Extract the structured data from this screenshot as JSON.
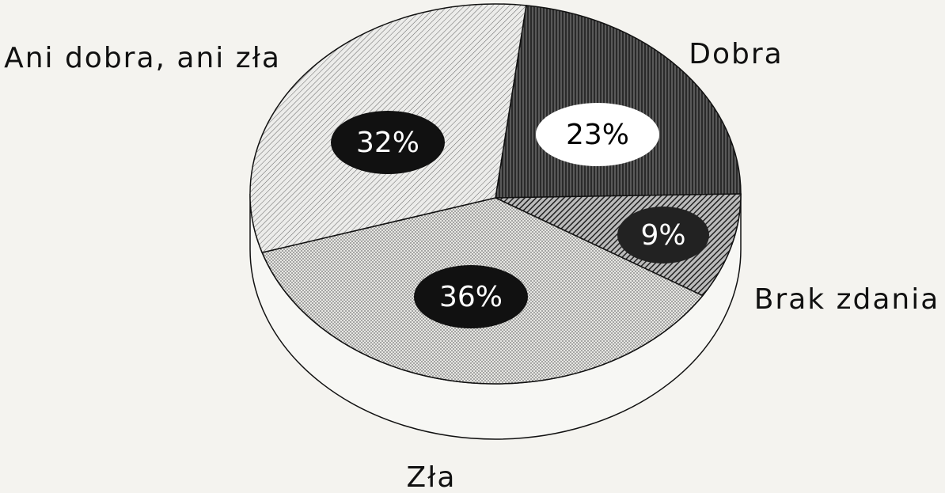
{
  "chart_data": {
    "type": "pie",
    "categories": [
      "Dobra",
      "Brak zdania",
      "Zła",
      "Ani dobra, ani zła"
    ],
    "values": [
      23,
      9,
      36,
      32
    ],
    "value_labels": [
      "23%",
      "9%",
      "36%",
      "32%"
    ]
  }
}
